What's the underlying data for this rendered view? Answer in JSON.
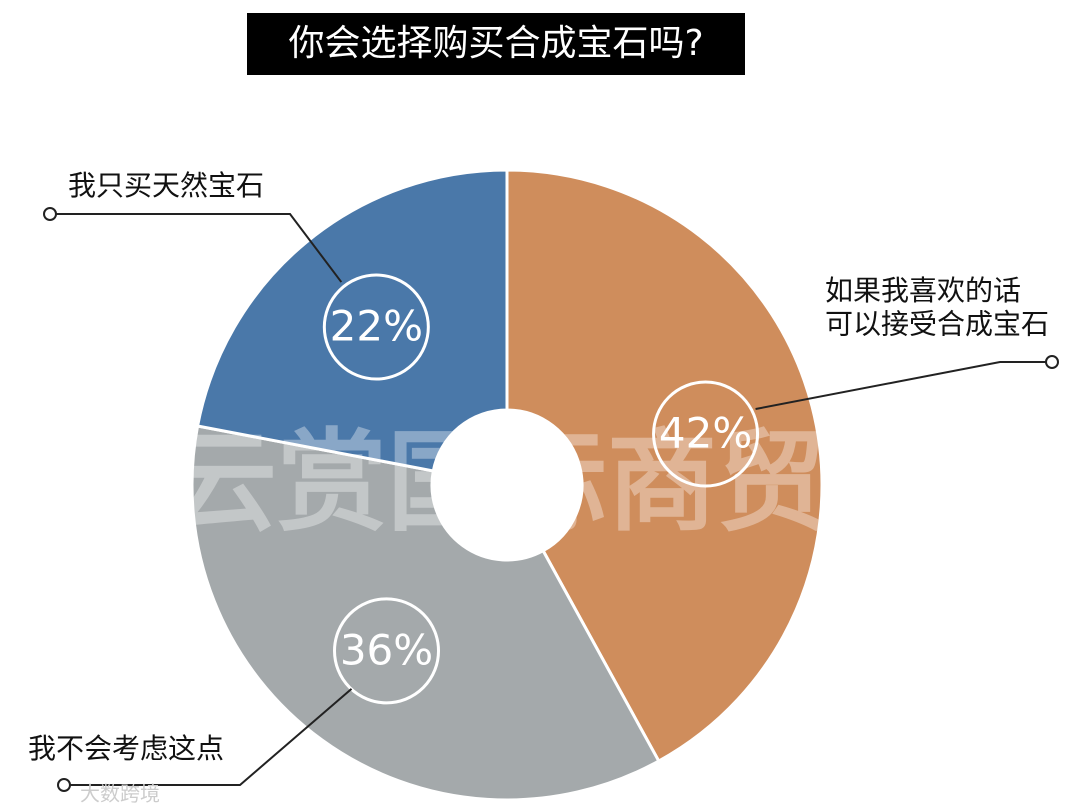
{
  "chart_data": {
    "type": "donut",
    "title": "你会选择购买合成宝石吗?",
    "categories": [
      "如果我喜欢的话\n可以接受合成宝石",
      "我不会考虑这点",
      "我只买天然宝石"
    ],
    "values": [
      42,
      36,
      22
    ],
    "value_labels": [
      "42%",
      "36%",
      "22%"
    ],
    "colors": [
      "#cf8d5c",
      "#a4a9ab",
      "#4a78a9"
    ],
    "watermark": "云赏国际商贸",
    "credit": "大数跨境"
  }
}
